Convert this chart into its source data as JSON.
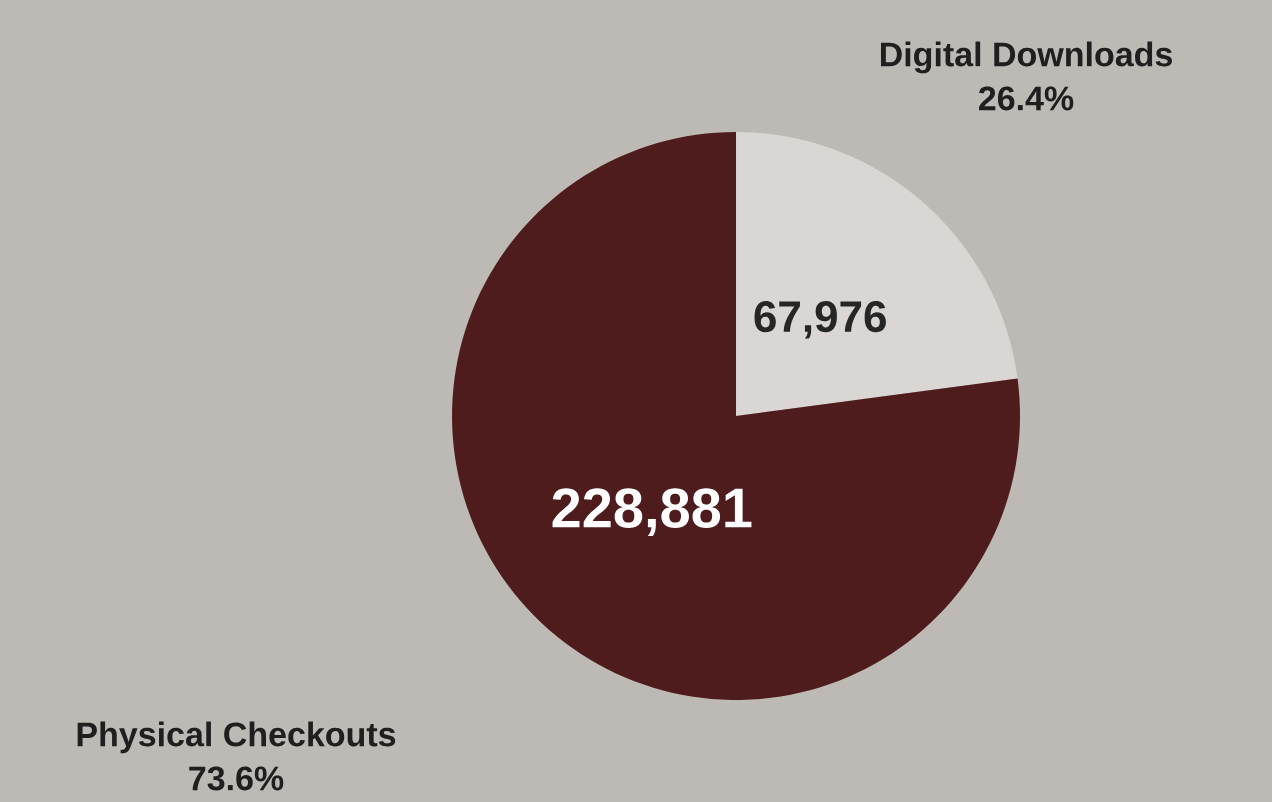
{
  "chart_data": {
    "type": "pie",
    "categories": [
      "Digital Downloads",
      "Physical Checkouts"
    ],
    "values": [
      67976,
      228881
    ],
    "colors": [
      "#d9d6d3",
      "#4f1c1e"
    ],
    "value_labels": [
      "67,976",
      "228,881"
    ],
    "annotations": [
      "26.4%",
      "73.6%"
    ]
  }
}
